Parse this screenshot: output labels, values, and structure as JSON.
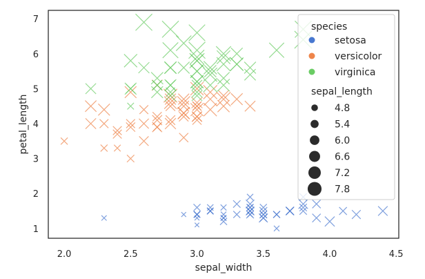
{
  "chart_data": {
    "type": "scatter",
    "title": "",
    "xlabel": "sepal_width",
    "ylabel": "petal_length",
    "xlim": [
      1.88,
      4.52
    ],
    "ylim": [
      0.72,
      7.24
    ],
    "xticks": [
      "2.0",
      "2.5",
      "3.0",
      "3.5",
      "4.0",
      "4.5"
    ],
    "yticks": [
      "1",
      "2",
      "3",
      "4",
      "5",
      "6",
      "7"
    ],
    "grid": false,
    "marker": "x",
    "legend": {
      "placement": "top-right",
      "hue_title": "species",
      "size_title": "sepal_length",
      "species": [
        {
          "name": "setosa",
          "color": "#4878d0"
        },
        {
          "name": "versicolor",
          "color": "#ee854a"
        },
        {
          "name": "virginica",
          "color": "#6acc64"
        }
      ],
      "sizes": [
        "4.8",
        "5.4",
        "6.0",
        "6.6",
        "7.2",
        "7.8"
      ]
    },
    "series": [
      {
        "name": "setosa",
        "color": "#4878d0",
        "points": [
          [
            3.5,
            1.4,
            5.1
          ],
          [
            3.0,
            1.4,
            4.9
          ],
          [
            3.2,
            1.3,
            4.7
          ],
          [
            3.1,
            1.5,
            4.6
          ],
          [
            3.6,
            1.4,
            5.0
          ],
          [
            3.9,
            1.7,
            5.4
          ],
          [
            3.4,
            1.4,
            4.6
          ],
          [
            3.4,
            1.5,
            5.0
          ],
          [
            2.9,
            1.4,
            4.4
          ],
          [
            3.1,
            1.5,
            4.9
          ],
          [
            3.7,
            1.5,
            5.4
          ],
          [
            3.4,
            1.6,
            4.8
          ],
          [
            3.0,
            1.4,
            4.8
          ],
          [
            3.0,
            1.1,
            4.3
          ],
          [
            4.0,
            1.2,
            5.8
          ],
          [
            4.4,
            1.5,
            5.7
          ],
          [
            3.9,
            1.3,
            5.4
          ],
          [
            3.5,
            1.4,
            5.1
          ],
          [
            3.8,
            1.7,
            5.7
          ],
          [
            3.8,
            1.5,
            5.1
          ],
          [
            3.4,
            1.7,
            5.4
          ],
          [
            3.7,
            1.5,
            5.1
          ],
          [
            3.6,
            1.0,
            4.6
          ],
          [
            3.3,
            1.7,
            5.1
          ],
          [
            3.4,
            1.9,
            4.8
          ],
          [
            3.0,
            1.6,
            5.0
          ],
          [
            3.4,
            1.6,
            5.0
          ],
          [
            3.5,
            1.5,
            5.2
          ],
          [
            3.4,
            1.4,
            5.2
          ],
          [
            3.2,
            1.6,
            4.7
          ],
          [
            3.1,
            1.6,
            4.8
          ],
          [
            3.4,
            1.5,
            5.4
          ],
          [
            4.1,
            1.5,
            5.2
          ],
          [
            4.2,
            1.4,
            5.5
          ],
          [
            3.1,
            1.5,
            4.9
          ],
          [
            3.2,
            1.2,
            5.0
          ],
          [
            3.5,
            1.3,
            5.5
          ],
          [
            3.6,
            1.4,
            4.9
          ],
          [
            3.0,
            1.3,
            4.4
          ],
          [
            3.4,
            1.5,
            5.1
          ],
          [
            3.5,
            1.3,
            5.0
          ],
          [
            2.3,
            1.3,
            4.5
          ],
          [
            3.2,
            1.3,
            4.4
          ],
          [
            3.5,
            1.6,
            5.0
          ],
          [
            3.8,
            1.9,
            5.1
          ],
          [
            3.0,
            1.4,
            4.8
          ],
          [
            3.8,
            1.6,
            5.1
          ],
          [
            3.2,
            1.4,
            4.6
          ],
          [
            3.7,
            1.5,
            5.3
          ],
          [
            3.3,
            1.4,
            5.0
          ]
        ]
      },
      {
        "name": "versicolor",
        "color": "#ee854a",
        "points": [
          [
            3.2,
            4.7,
            7.0
          ],
          [
            3.2,
            4.5,
            6.4
          ],
          [
            3.1,
            4.9,
            6.9
          ],
          [
            2.3,
            4.0,
            5.5
          ],
          [
            2.8,
            4.6,
            6.5
          ],
          [
            2.8,
            4.5,
            5.7
          ],
          [
            3.3,
            4.7,
            6.3
          ],
          [
            2.4,
            3.3,
            4.9
          ],
          [
            2.9,
            4.6,
            6.6
          ],
          [
            2.7,
            3.9,
            5.2
          ],
          [
            2.0,
            3.5,
            5.0
          ],
          [
            3.0,
            4.2,
            5.9
          ],
          [
            2.2,
            4.0,
            6.0
          ],
          [
            2.9,
            4.7,
            6.1
          ],
          [
            2.9,
            3.6,
            5.6
          ],
          [
            3.1,
            4.4,
            6.7
          ],
          [
            3.0,
            4.5,
            5.6
          ],
          [
            2.7,
            4.1,
            5.8
          ],
          [
            2.2,
            4.5,
            6.2
          ],
          [
            2.5,
            3.9,
            5.6
          ],
          [
            3.2,
            4.8,
            5.9
          ],
          [
            2.8,
            4.0,
            6.1
          ],
          [
            2.5,
            4.9,
            6.3
          ],
          [
            2.8,
            4.7,
            6.1
          ],
          [
            2.9,
            4.3,
            6.4
          ],
          [
            3.0,
            4.4,
            6.6
          ],
          [
            2.8,
            4.8,
            6.8
          ],
          [
            3.0,
            5.0,
            6.7
          ],
          [
            2.9,
            4.5,
            6.0
          ],
          [
            2.6,
            3.5,
            5.7
          ],
          [
            2.4,
            3.8,
            5.5
          ],
          [
            2.4,
            3.7,
            5.5
          ],
          [
            2.7,
            3.9,
            5.8
          ],
          [
            2.7,
            5.1,
            6.0
          ],
          [
            3.0,
            4.5,
            5.4
          ],
          [
            3.4,
            4.5,
            6.0
          ],
          [
            3.1,
            4.7,
            6.7
          ],
          [
            2.3,
            4.4,
            6.3
          ],
          [
            3.0,
            4.1,
            5.6
          ],
          [
            2.5,
            4.0,
            5.5
          ],
          [
            2.6,
            4.4,
            5.5
          ],
          [
            3.0,
            4.6,
            6.1
          ],
          [
            2.6,
            4.0,
            5.8
          ],
          [
            2.3,
            3.3,
            5.0
          ],
          [
            2.7,
            4.2,
            5.6
          ],
          [
            3.0,
            4.2,
            5.7
          ],
          [
            2.9,
            4.2,
            5.7
          ],
          [
            2.9,
            4.3,
            6.2
          ],
          [
            2.5,
            3.0,
            5.1
          ],
          [
            2.8,
            4.1,
            5.7
          ]
        ]
      },
      {
        "name": "virginica",
        "color": "#6acc64",
        "points": [
          [
            3.3,
            6.0,
            6.3
          ],
          [
            2.7,
            5.1,
            5.8
          ],
          [
            3.0,
            5.9,
            7.1
          ],
          [
            2.9,
            5.6,
            6.3
          ],
          [
            3.0,
            5.8,
            6.5
          ],
          [
            3.0,
            6.6,
            7.6
          ],
          [
            2.5,
            4.5,
            4.9
          ],
          [
            2.9,
            6.3,
            7.3
          ],
          [
            2.5,
            5.8,
            6.7
          ],
          [
            3.6,
            6.1,
            7.2
          ],
          [
            3.2,
            5.1,
            6.5
          ],
          [
            2.7,
            5.3,
            6.4
          ],
          [
            3.0,
            5.5,
            6.8
          ],
          [
            2.5,
            5.0,
            5.7
          ],
          [
            2.8,
            5.1,
            5.8
          ],
          [
            3.2,
            5.3,
            6.4
          ],
          [
            3.0,
            5.5,
            6.5
          ],
          [
            3.8,
            6.7,
            7.7
          ],
          [
            2.6,
            6.9,
            7.7
          ],
          [
            2.2,
            5.0,
            6.0
          ],
          [
            3.2,
            5.7,
            6.9
          ],
          [
            2.8,
            4.9,
            5.6
          ],
          [
            2.8,
            6.7,
            7.7
          ],
          [
            2.7,
            4.9,
            6.3
          ],
          [
            3.3,
            5.7,
            6.7
          ],
          [
            3.2,
            6.0,
            7.2
          ],
          [
            2.8,
            4.8,
            6.2
          ],
          [
            3.0,
            4.9,
            6.1
          ],
          [
            2.8,
            5.6,
            6.4
          ],
          [
            3.0,
            5.8,
            7.2
          ],
          [
            2.8,
            6.1,
            7.4
          ],
          [
            3.8,
            6.4,
            7.9
          ],
          [
            2.8,
            5.6,
            6.4
          ],
          [
            2.8,
            5.1,
            6.3
          ],
          [
            2.6,
            5.6,
            6.1
          ],
          [
            3.0,
            6.1,
            7.7
          ],
          [
            3.4,
            5.6,
            6.3
          ],
          [
            3.1,
            5.5,
            6.4
          ],
          [
            3.0,
            4.8,
            6.0
          ],
          [
            3.1,
            5.4,
            6.9
          ],
          [
            3.1,
            5.6,
            6.7
          ],
          [
            3.1,
            5.1,
            6.9
          ],
          [
            2.7,
            5.1,
            5.8
          ],
          [
            3.2,
            5.9,
            6.8
          ],
          [
            3.3,
            5.7,
            6.7
          ],
          [
            3.0,
            5.2,
            6.7
          ],
          [
            2.5,
            5.0,
            6.3
          ],
          [
            3.0,
            5.2,
            6.5
          ],
          [
            3.4,
            5.4,
            6.2
          ],
          [
            3.0,
            5.1,
            5.9
          ]
        ]
      }
    ]
  }
}
